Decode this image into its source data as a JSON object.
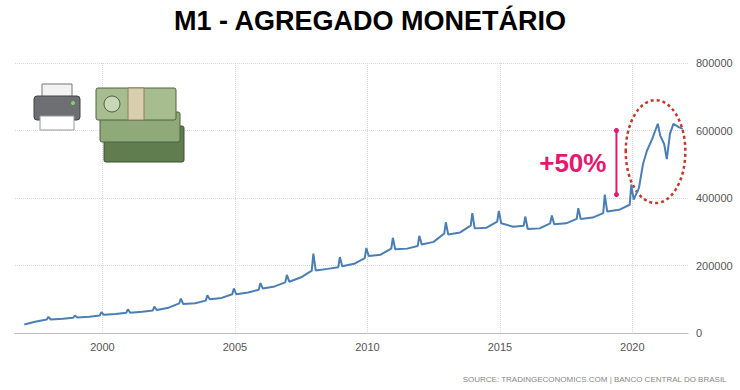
{
  "chart_data": {
    "type": "line",
    "title": "M1 - AGREGADO MONETÁRIO",
    "source": "SOURCE: TRADINGECONOMICS.COM | BANCO CENTRAL DO BRASIL",
    "color": "#4a7fb5",
    "grid": true,
    "x": [
      1997.05,
      1997.5,
      1997.9,
      1997.96,
      1998.05,
      1998.5,
      1998.9,
      1998.96,
      1999.05,
      1999.5,
      1999.9,
      1999.96,
      2000.05,
      2000.5,
      2000.9,
      2000.96,
      2001.05,
      2001.5,
      2001.9,
      2001.96,
      2002.05,
      2002.5,
      2002.9,
      2002.96,
      2003.05,
      2003.5,
      2003.9,
      2003.96,
      2004.05,
      2004.5,
      2004.9,
      2004.96,
      2005.05,
      2005.5,
      2005.9,
      2005.96,
      2006.05,
      2006.5,
      2006.9,
      2006.96,
      2007.05,
      2007.5,
      2007.9,
      2007.96,
      2008.05,
      2008.5,
      2008.9,
      2008.96,
      2009.05,
      2009.5,
      2009.9,
      2009.96,
      2010.05,
      2010.5,
      2010.9,
      2010.96,
      2011.05,
      2011.5,
      2011.9,
      2011.96,
      2012.05,
      2012.5,
      2012.9,
      2012.96,
      2013.05,
      2013.5,
      2013.9,
      2013.96,
      2014.05,
      2014.5,
      2014.9,
      2014.96,
      2015.05,
      2015.5,
      2015.9,
      2015.96,
      2016.05,
      2016.5,
      2016.9,
      2016.96,
      2017.05,
      2017.5,
      2017.9,
      2017.96,
      2018.05,
      2018.5,
      2018.9,
      2018.96,
      2019.05,
      2019.5,
      2019.9,
      2019.96,
      2020.05,
      2020.25,
      2020.4,
      2020.55,
      2020.75,
      2020.96,
      2021.05,
      2021.2,
      2021.3,
      2021.42,
      2021.55,
      2021.75,
      2021.9
    ],
    "values": [
      25000,
      34000,
      40000,
      48000,
      40000,
      42000,
      45000,
      52000,
      46000,
      48000,
      52000,
      62000,
      54000,
      56000,
      60000,
      70000,
      60000,
      63000,
      67000,
      78000,
      68000,
      75000,
      88000,
      102000,
      86000,
      88000,
      96000,
      112000,
      100000,
      104000,
      115000,
      132000,
      115000,
      120000,
      128000,
      148000,
      132000,
      138000,
      150000,
      172000,
      152000,
      165000,
      185000,
      235000,
      185000,
      190000,
      195000,
      225000,
      198000,
      205000,
      222000,
      252000,
      228000,
      232000,
      250000,
      282000,
      248000,
      250000,
      258000,
      288000,
      262000,
      270000,
      295000,
      328000,
      292000,
      298000,
      318000,
      355000,
      310000,
      312000,
      330000,
      362000,
      325000,
      315000,
      318000,
      345000,
      308000,
      310000,
      325000,
      348000,
      322000,
      325000,
      338000,
      370000,
      338000,
      342000,
      355000,
      410000,
      360000,
      365000,
      380000,
      440000,
      395000,
      430000,
      500000,
      540000,
      575000,
      620000,
      585000,
      560000,
      515000,
      590000,
      620000,
      610000,
      605000
    ],
    "xlim": [
      1996.7,
      2022.1
    ],
    "xticks": [
      2000,
      2005,
      2010,
      2015,
      2020
    ],
    "ylim": [
      0,
      800000
    ],
    "yticks": [
      0,
      200000,
      400000,
      600000,
      800000
    ],
    "annotation": {
      "text": "+50%",
      "x": 2019.4,
      "from": 410000,
      "to": 600000,
      "color": "#e6186e"
    },
    "highlight": {
      "x": [
        2019.75,
        2022.0
      ],
      "y": [
        385000,
        690000
      ],
      "color": "#c0392b"
    }
  }
}
